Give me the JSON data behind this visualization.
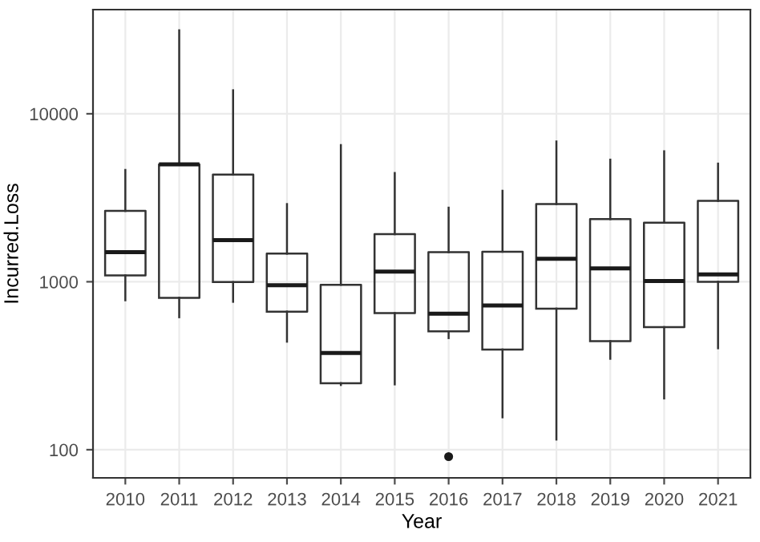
{
  "chart_data": {
    "type": "box",
    "xlabel": "Year",
    "ylabel": "Incurred.Loss",
    "log": "y",
    "grid": true,
    "categories": [
      "2010",
      "2011",
      "2012",
      "2013",
      "2014",
      "2015",
      "2016",
      "2017",
      "2018",
      "2019",
      "2020",
      "2021"
    ],
    "ylim": [
      68,
      41700
    ],
    "yticks": [
      100,
      1000,
      10000
    ],
    "boxes": [
      {
        "low": 776,
        "q1": 1090,
        "median": 1500,
        "q3": 2640,
        "high": 4630
      },
      {
        "low": 615,
        "q1": 803,
        "median": 5000,
        "q3": 5000,
        "high": 31400
      },
      {
        "low": 760,
        "q1": 995,
        "median": 1770,
        "q3": 4340,
        "high": 13800
      },
      {
        "low": 440,
        "q1": 664,
        "median": 953,
        "q3": 1470,
        "high": 2900
      },
      {
        "low": 243,
        "q1": 249,
        "median": 377,
        "q3": 960,
        "high": 6510
      },
      {
        "low": 245,
        "q1": 650,
        "median": 1150,
        "q3": 1920,
        "high": 4440
      },
      {
        "low": 462,
        "q1": 507,
        "median": 646,
        "q3": 1500,
        "high": 2760,
        "outliers": [
          91
        ]
      },
      {
        "low": 156,
        "q1": 395,
        "median": 723,
        "q3": 1510,
        "high": 3480
      },
      {
        "low": 115,
        "q1": 692,
        "median": 1370,
        "q3": 2900,
        "high": 6840
      },
      {
        "low": 348,
        "q1": 443,
        "median": 1200,
        "q3": 2360,
        "high": 5330
      },
      {
        "low": 202,
        "q1": 537,
        "median": 1010,
        "q3": 2250,
        "high": 5980
      },
      {
        "low": 402,
        "q1": 1000,
        "median": 1105,
        "q3": 3030,
        "high": 5050
      }
    ]
  }
}
